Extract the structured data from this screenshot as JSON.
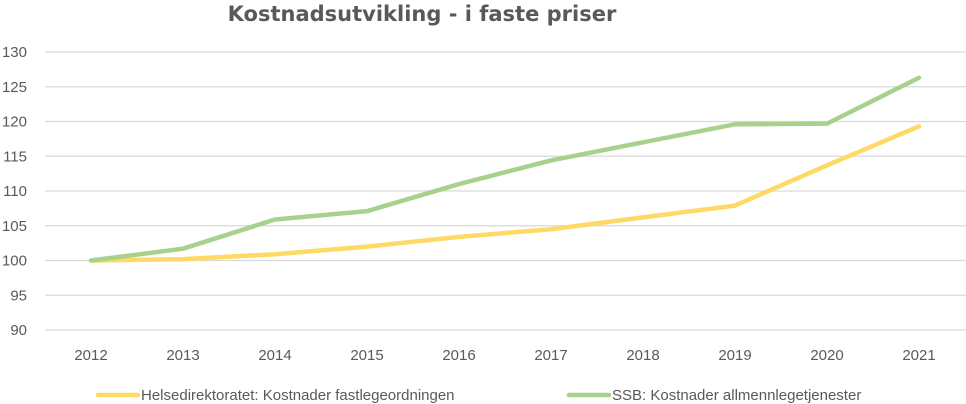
{
  "chart_data": {
    "type": "line",
    "title": "Kostnadsutvikling - i faste priser",
    "xlabel": "",
    "ylabel": "",
    "x": [
      "2012",
      "2013",
      "2014",
      "2015",
      "2016",
      "2017",
      "2018",
      "2019",
      "2020",
      "2021"
    ],
    "ylim": [
      90,
      130
    ],
    "yticks": [
      90,
      95,
      100,
      105,
      110,
      115,
      120,
      125,
      130
    ],
    "grid": true,
    "legend_position": "bottom",
    "series": [
      {
        "name": "Helsedirektoratet: Kostnader fastlegeordningen",
        "color": "#ffd966",
        "values": [
          100,
          100.2,
          100.9,
          102.0,
          103.4,
          104.5,
          106.2,
          107.9,
          113.7,
          119.3
        ]
      },
      {
        "name": "SSB: Kostnader allmennlegetjenester",
        "color": "#a9d18e",
        "values": [
          100,
          101.7,
          105.9,
          107.1,
          111.0,
          114.4,
          117.0,
          119.6,
          119.7,
          126.3
        ]
      }
    ]
  }
}
